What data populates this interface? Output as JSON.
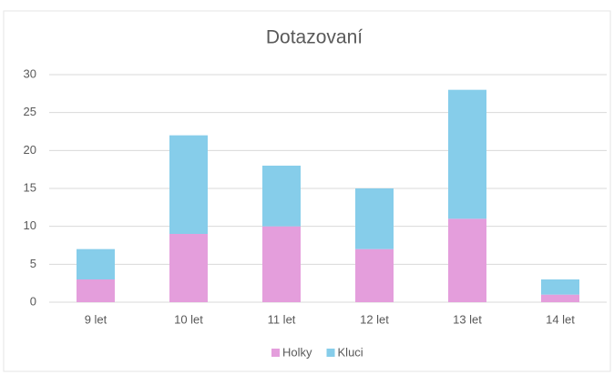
{
  "chart_data": {
    "type": "stacked_bar",
    "title": "Dotazovaní",
    "categories": [
      "9 let",
      "10 let",
      "11 let",
      "12 let",
      "13 let",
      "14 let"
    ],
    "series": [
      {
        "name": "Holky",
        "color": "#e49edc",
        "values": [
          3,
          9,
          10,
          7,
          11,
          1
        ]
      },
      {
        "name": "Kluci",
        "color": "#86cdea",
        "values": [
          4,
          13,
          8,
          8,
          17,
          2
        ]
      }
    ],
    "ylim": [
      0,
      30
    ],
    "yticks": [
      0,
      5,
      10,
      15,
      20,
      25,
      30
    ],
    "grid": true,
    "legend": "bottom"
  }
}
